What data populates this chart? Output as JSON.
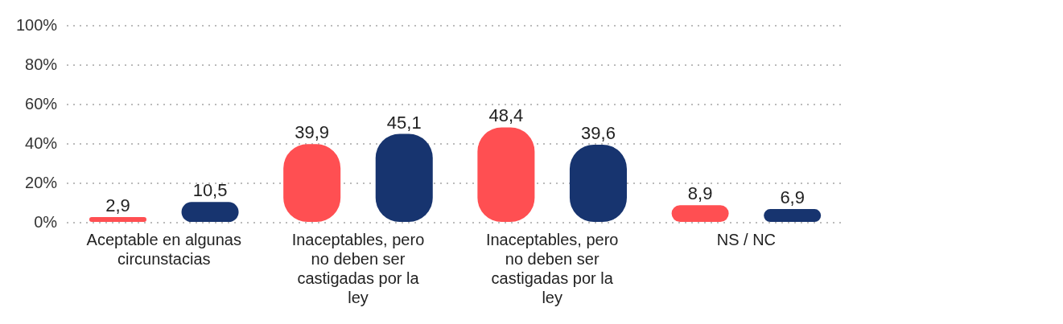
{
  "chart_data": {
    "type": "bar",
    "categories": [
      "Aceptable en algunas circunstacias",
      "Inaceptables, pero no deben ser castigadas por la ley",
      "Inaceptables, pero no deben ser castigadas por la ley",
      "NS / NC"
    ],
    "series": [
      {
        "color": "#ff4f52",
        "values": [
          2.9,
          39.9,
          48.4,
          8.9
        ],
        "value_labels": [
          "2,9",
          "39,9",
          "48,4",
          "8,9"
        ]
      },
      {
        "color": "#17346f",
        "values": [
          10.5,
          45.1,
          39.6,
          6.9
        ],
        "value_labels": [
          "10,5",
          "45,1",
          "39,6",
          "6,9"
        ]
      }
    ],
    "ylim": [
      0,
      100
    ],
    "yticks": [
      {
        "value": 0,
        "label": "0%"
      },
      {
        "value": 20,
        "label": "20%"
      },
      {
        "value": 40,
        "label": "40%"
      },
      {
        "value": 60,
        "label": "60%"
      },
      {
        "value": 80,
        "label": "80%"
      },
      {
        "value": 100,
        "label": "100%"
      }
    ],
    "grid": "y",
    "legend": false
  }
}
